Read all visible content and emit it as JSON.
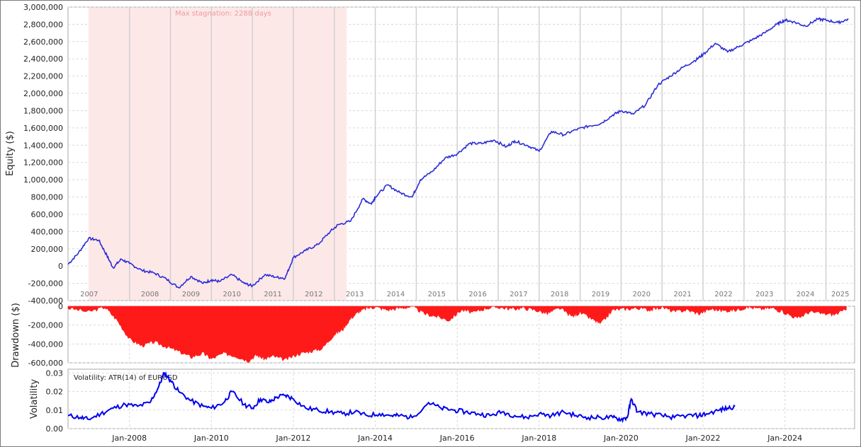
{
  "colors": {
    "equity_line": "#2c2cd6",
    "drawdown_fill": "#ff1a1a",
    "volatility_line": "#0000ee",
    "stagnation_band": "#fde8e8",
    "grid": "#d8d8d8",
    "year_separator": "#d0d0d0"
  },
  "chart_data": [
    {
      "type": "line",
      "id": "equity",
      "ylabel": "Equity ($)",
      "ylim": [
        -400000,
        3000000
      ],
      "yticks": [
        -400000,
        -200000,
        0,
        200000,
        400000,
        600000,
        800000,
        1000000,
        1200000,
        1400000,
        1600000,
        1800000,
        2000000,
        2200000,
        2400000,
        2600000,
        2800000,
        3000000
      ],
      "ytick_labels": [
        "-400,000",
        "-200,000",
        "0",
        "200,000",
        "400,000",
        "600,000",
        "800,000",
        "1,000,000",
        "1,200,000",
        "1,400,000",
        "1,600,000",
        "1,800,000",
        "2,000,000",
        "2,200,000",
        "2,400,000",
        "2,600,000",
        "2,800,000",
        "3,000,000"
      ],
      "xlim": [
        2006.5,
        2025.7
      ],
      "year_labels": [
        "2007",
        "2008",
        "2009",
        "2010",
        "2011",
        "2012",
        "2013",
        "2014",
        "2015",
        "2016",
        "2017",
        "2018",
        "2019",
        "2020",
        "2021",
        "2022",
        "2023",
        "2024",
        "2025"
      ],
      "annotation": "Max stagnation: 2288 days",
      "stagnation_period": [
        2007.0,
        2013.3
      ],
      "grid": true,
      "x": [
        2006.5,
        2006.75,
        2007.0,
        2007.25,
        2007.45,
        2007.6,
        2007.8,
        2008.0,
        2008.3,
        2008.6,
        2008.9,
        2009.2,
        2009.5,
        2009.8,
        2010.0,
        2010.2,
        2010.5,
        2010.8,
        2011.0,
        2011.3,
        2011.6,
        2011.8,
        2012.0,
        2012.3,
        2012.6,
        2012.9,
        2013.1,
        2013.4,
        2013.7,
        2013.9,
        2014.0,
        2014.3,
        2014.6,
        2014.9,
        2015.1,
        2015.4,
        2015.7,
        2016.0,
        2016.3,
        2016.6,
        2016.9,
        2017.2,
        2017.4,
        2017.7,
        2018.0,
        2018.3,
        2018.6,
        2018.9,
        2019.2,
        2019.5,
        2019.8,
        2020.0,
        2020.3,
        2020.6,
        2020.9,
        2021.2,
        2021.5,
        2021.8,
        2022.0,
        2022.3,
        2022.6,
        2022.9,
        2023.2,
        2023.5,
        2023.8,
        2024.0,
        2024.2,
        2024.5,
        2024.8,
        2025.0,
        2025.3,
        2025.55
      ],
      "y": [
        20000,
        150000,
        320000,
        300000,
        120000,
        -20000,
        80000,
        30000,
        -50000,
        -80000,
        -150000,
        -250000,
        -120000,
        -200000,
        -160000,
        -180000,
        -100000,
        -200000,
        -230000,
        -100000,
        -130000,
        -140000,
        100000,
        180000,
        250000,
        400000,
        480000,
        520000,
        780000,
        720000,
        800000,
        940000,
        850000,
        800000,
        1000000,
        1100000,
        1250000,
        1300000,
        1420000,
        1420000,
        1460000,
        1380000,
        1450000,
        1400000,
        1330000,
        1560000,
        1520000,
        1580000,
        1620000,
        1650000,
        1750000,
        1800000,
        1760000,
        1870000,
        2100000,
        2200000,
        2300000,
        2380000,
        2450000,
        2580000,
        2480000,
        2550000,
        2620000,
        2700000,
        2800000,
        2850000,
        2830000,
        2780000,
        2860000,
        2850000,
        2820000,
        2860000
      ]
    },
    {
      "type": "area",
      "id": "drawdown",
      "ylabel": "Drawdown ($)",
      "ylim": [
        -600000,
        0
      ],
      "yticks": [
        -600000,
        -400000,
        -200000,
        0
      ],
      "ytick_labels": [
        "-600,000",
        "-400,000",
        "-200,000",
        "0"
      ],
      "xlim": [
        2006.5,
        2025.7
      ],
      "grid": true,
      "x": [
        2006.5,
        2007.0,
        2007.4,
        2007.7,
        2008.0,
        2008.3,
        2008.6,
        2008.9,
        2009.2,
        2009.5,
        2009.8,
        2010.0,
        2010.3,
        2010.6,
        2010.9,
        2011.1,
        2011.3,
        2011.5,
        2011.8,
        2012.1,
        2012.4,
        2012.7,
        2013.0,
        2013.2,
        2013.4,
        2013.6,
        2013.8,
        2014.0,
        2014.3,
        2014.6,
        2014.9,
        2015.2,
        2015.5,
        2015.8,
        2016.1,
        2016.4,
        2016.7,
        2017.0,
        2017.3,
        2017.6,
        2017.9,
        2018.2,
        2018.5,
        2018.8,
        2019.0,
        2019.3,
        2019.5,
        2019.8,
        2020.1,
        2020.4,
        2020.7,
        2021.0,
        2021.3,
        2021.6,
        2021.9,
        2022.2,
        2022.5,
        2022.8,
        2023.1,
        2023.4,
        2023.7,
        2024.0,
        2024.3,
        2024.6,
        2024.9,
        2025.2,
        2025.5
      ],
      "y": [
        -20000,
        -60000,
        -10000,
        -150000,
        -350000,
        -420000,
        -380000,
        -430000,
        -480000,
        -540000,
        -500000,
        -560000,
        -500000,
        -530000,
        -580000,
        -520000,
        -560000,
        -530000,
        -570000,
        -510000,
        -480000,
        -450000,
        -300000,
        -250000,
        -130000,
        -60000,
        -20000,
        -10000,
        -40000,
        -20000,
        -5000,
        -80000,
        -110000,
        -150000,
        -40000,
        -70000,
        -20000,
        -10000,
        -30000,
        -20000,
        -40000,
        -80000,
        -20000,
        -110000,
        -70000,
        -140000,
        -190000,
        -40000,
        -30000,
        -20000,
        -40000,
        -10000,
        -60000,
        -40000,
        -80000,
        -30000,
        -50000,
        -40000,
        -10000,
        -30000,
        -20000,
        -70000,
        -130000,
        -60000,
        -80000,
        -90000,
        -40000
      ]
    },
    {
      "type": "line",
      "id": "volatility",
      "title": "Volatility: ATR(14) of EURUSD",
      "ylabel": "Volatility",
      "ylim": [
        0.0,
        0.032
      ],
      "yticks": [
        0.0,
        0.01,
        0.02,
        0.03
      ],
      "ytick_labels": [
        "0.00",
        "0.01",
        "0.02",
        "0.03"
      ],
      "xlim": [
        2006.5,
        2025.7
      ],
      "xticks": [
        2008.0,
        2010.0,
        2012.0,
        2014.0,
        2016.0,
        2018.0,
        2020.0,
        2022.0,
        2024.0
      ],
      "xtick_labels": [
        "Jan-2008",
        "Jan-2010",
        "Jan-2012",
        "Jan-2014",
        "Jan-2016",
        "Jan-2018",
        "Jan-2020",
        "Jan-2022",
        "Jan-2024"
      ],
      "grid": true,
      "x": [
        2006.5,
        2006.8,
        2007.0,
        2007.3,
        2007.6,
        2007.9,
        2008.2,
        2008.5,
        2008.7,
        2008.85,
        2009.0,
        2009.2,
        2009.5,
        2009.8,
        2010.0,
        2010.3,
        2010.5,
        2010.8,
        2011.0,
        2011.2,
        2011.4,
        2011.6,
        2011.8,
        2012.0,
        2012.3,
        2012.6,
        2012.9,
        2013.2,
        2013.5,
        2013.8,
        2014.1,
        2014.4,
        2014.6,
        2014.9,
        2015.3,
        2015.6,
        2015.9,
        2016.2,
        2016.5,
        2016.8,
        2017.1,
        2017.4,
        2017.7,
        2018.0,
        2018.3,
        2018.6,
        2018.9,
        2019.2,
        2019.5,
        2019.8,
        2020.0,
        2020.15,
        2020.25,
        2020.4,
        2020.7,
        2021.0,
        2021.3,
        2021.6,
        2021.9,
        2022.1,
        2022.4,
        2022.6,
        2022.78
      ],
      "y": [
        0.007,
        0.006,
        0.005,
        0.008,
        0.011,
        0.013,
        0.012,
        0.014,
        0.022,
        0.03,
        0.026,
        0.02,
        0.015,
        0.012,
        0.011,
        0.014,
        0.02,
        0.013,
        0.011,
        0.016,
        0.014,
        0.017,
        0.018,
        0.016,
        0.011,
        0.01,
        0.009,
        0.008,
        0.009,
        0.007,
        0.008,
        0.007,
        0.007,
        0.006,
        0.014,
        0.011,
        0.01,
        0.009,
        0.008,
        0.007,
        0.009,
        0.007,
        0.006,
        0.008,
        0.007,
        0.009,
        0.007,
        0.006,
        0.006,
        0.006,
        0.005,
        0.006,
        0.016,
        0.009,
        0.008,
        0.007,
        0.006,
        0.007,
        0.007,
        0.008,
        0.01,
        0.011,
        0.012
      ]
    }
  ]
}
